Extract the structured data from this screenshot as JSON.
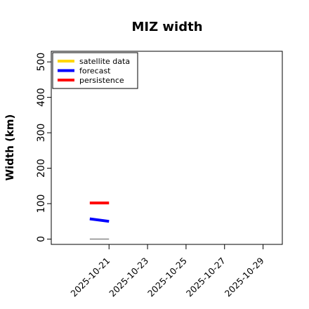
{
  "chart_data": {
    "type": "line",
    "title": "MIZ width",
    "xlabel": "",
    "ylabel": "Width (km)",
    "ylim": [
      -15,
      530
    ],
    "yticks": [
      0,
      100,
      200,
      300,
      400,
      500
    ],
    "xlim": [
      "2025-10-18",
      "2025-10-30"
    ],
    "xticks": [
      {
        "label": "2025-10-21",
        "value": "2025-10-21",
        "color": "#228b22"
      },
      {
        "label": "2025-10-23",
        "value": "2025-10-23",
        "color": "#000000"
      },
      {
        "label": "2025-10-25",
        "value": "2025-10-25",
        "color": "#000000"
      },
      {
        "label": "2025-10-27",
        "value": "2025-10-27",
        "color": "#000000"
      },
      {
        "label": "2025-10-29",
        "value": "2025-10-29",
        "color": "#000000"
      }
    ],
    "grid": false,
    "legend": {
      "position": "top-left",
      "entries": [
        {
          "name": "satellite data",
          "color": "#ffd700"
        },
        {
          "name": "forecast",
          "color": "#0000ff"
        },
        {
          "name": "persistence",
          "color": "#ff0000"
        }
      ]
    },
    "series": [
      {
        "name": "forecast",
        "color": "#0000ff",
        "points": [
          {
            "x": "2025-10-20",
            "y": 57
          },
          {
            "x": "2025-10-21",
            "y": 50
          }
        ]
      },
      {
        "name": "persistence",
        "color": "#ff0000",
        "points": [
          {
            "x": "2025-10-20",
            "y": 102
          },
          {
            "x": "2025-10-21",
            "y": 102
          }
        ]
      }
    ],
    "reference_line": {
      "color": "#808080",
      "points": [
        {
          "x": "2025-10-20",
          "y": 0
        },
        {
          "x": "2025-10-21",
          "y": 0
        }
      ]
    }
  }
}
